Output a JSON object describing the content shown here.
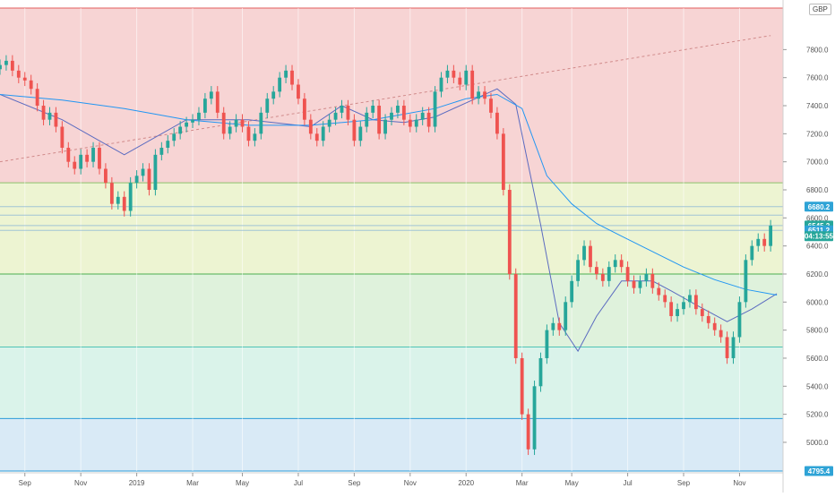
{
  "currency": "GBP",
  "colors": {
    "up": "#26a69a",
    "down": "#ef5350",
    "ma_short": "#5b6bc0",
    "ma_long": "#2196f3",
    "trendline": "#d08a8a",
    "price_badge": "#26a69a",
    "level_badge": "#2ea3d6"
  },
  "price_badges": [
    {
      "value": 6680.2,
      "label": "6680.2",
      "kind": "level"
    },
    {
      "value": 6545.2,
      "label": "6545.2",
      "kind": "last"
    },
    {
      "value": 6511.2,
      "label": "6511.2",
      "kind": "level"
    },
    {
      "value": 4795.4,
      "label": "4795.4",
      "kind": "level"
    }
  ],
  "countdown": {
    "value": 6470,
    "label": "04:13:55"
  },
  "chart_data": {
    "type": "candlestick",
    "currency_label": "GBP",
    "x_ticks": [
      "Sep",
      "Nov",
      "2019",
      "Mar",
      "May",
      "Jul",
      "Sep",
      "Nov",
      "2020",
      "Mar",
      "May",
      "Jul",
      "Sep",
      "Nov"
    ],
    "x_tick_weeks": [
      4,
      13,
      22,
      31,
      39,
      48,
      57,
      66,
      75,
      84,
      92,
      101,
      110,
      119
    ],
    "y_ticks": [
      5000,
      5200,
      5400,
      5600,
      5800,
      6000,
      6200,
      6400,
      6600,
      6800,
      7000,
      7200,
      7400,
      7600,
      7800
    ],
    "ylim": [
      4795.4,
      8096
    ],
    "x_range_weeks": [
      0,
      126
    ],
    "fib_zones": [
      {
        "from": 6850,
        "to": 8096,
        "color": "#f7d4d4",
        "line": "#e35d5d"
      },
      {
        "from": 6200,
        "to": 6850,
        "color": "#edf4d2",
        "line": "#8cc06b"
      },
      {
        "from": 5680,
        "to": 6200,
        "color": "#dff2dc",
        "line": "#4caf50"
      },
      {
        "from": 5170,
        "to": 5680,
        "color": "#daf3ea",
        "line": "#4fc3b5"
      },
      {
        "from": 4795.4,
        "to": 5170,
        "color": "#d9eaf6",
        "line": "#2a9bd8"
      }
    ],
    "horizontal_levels": [
      6680.2,
      6620,
      6545.2,
      6511.2
    ],
    "trendline": {
      "from": {
        "week": 0,
        "price": 7000
      },
      "to": {
        "week": 124,
        "price": 7900
      }
    },
    "series": [
      {
        "name": "",
        "type": "sma_short",
        "x": [
          0,
          10,
          20,
          30,
          40,
          50,
          55,
          60,
          65,
          70,
          75,
          80,
          83,
          87,
          90,
          93,
          96,
          100,
          105,
          108,
          112,
          117,
          121,
          125
        ],
        "y": [
          7480,
          7300,
          7050,
          7300,
          7300,
          7250,
          7400,
          7300,
          7280,
          7320,
          7420,
          7520,
          7410,
          6550,
          5850,
          5650,
          5900,
          6150,
          6150,
          6080,
          5980,
          5860,
          5950,
          6060
        ]
      },
      {
        "name": "",
        "type": "sma_long",
        "x": [
          0,
          10,
          20,
          30,
          40,
          50,
          60,
          70,
          75,
          80,
          84,
          88,
          92,
          96,
          100,
          105,
          110,
          115,
          120,
          125
        ],
        "y": [
          7480,
          7440,
          7380,
          7300,
          7260,
          7260,
          7300,
          7380,
          7450,
          7480,
          7380,
          6900,
          6700,
          6560,
          6470,
          6360,
          6250,
          6160,
          6090,
          6050
        ]
      }
    ],
    "candles": {
      "x": [
        0,
        1,
        2,
        3,
        4,
        5,
        6,
        7,
        8,
        9,
        10,
        11,
        12,
        13,
        14,
        15,
        16,
        17,
        18,
        19,
        20,
        21,
        22,
        23,
        24,
        25,
        26,
        27,
        28,
        29,
        30,
        31,
        32,
        33,
        34,
        35,
        36,
        37,
        38,
        39,
        40,
        41,
        42,
        43,
        44,
        45,
        46,
        47,
        48,
        49,
        50,
        51,
        52,
        53,
        54,
        55,
        56,
        57,
        58,
        59,
        60,
        61,
        62,
        63,
        64,
        65,
        66,
        67,
        68,
        69,
        70,
        71,
        72,
        73,
        74,
        75,
        76,
        77,
        78,
        79,
        80,
        81,
        82,
        83,
        84,
        85,
        86,
        87,
        88,
        89,
        90,
        91,
        92,
        93,
        94,
        95,
        96,
        97,
        98,
        99,
        100,
        101,
        102,
        103,
        104,
        105,
        106,
        107,
        108,
        109,
        110,
        111,
        112,
        113,
        114,
        115,
        116,
        117,
        118,
        119,
        120,
        121,
        122,
        123,
        124
      ],
      "close": [
        7690,
        7720,
        7650,
        7600,
        7580,
        7520,
        7400,
        7300,
        7350,
        7250,
        7100,
        7000,
        6950,
        7050,
        7000,
        7100,
        6950,
        6850,
        6700,
        6750,
        6650,
        6850,
        6900,
        6950,
        6800,
        7050,
        7100,
        7150,
        7200,
        7250,
        7280,
        7300,
        7350,
        7450,
        7500,
        7350,
        7200,
        7250,
        7300,
        7250,
        7150,
        7200,
        7350,
        7450,
        7500,
        7600,
        7650,
        7550,
        7450,
        7300,
        7200,
        7150,
        7250,
        7300,
        7350,
        7400,
        7300,
        7150,
        7250,
        7350,
        7400,
        7200,
        7300,
        7350,
        7400,
        7300,
        7250,
        7300,
        7350,
        7250,
        7500,
        7600,
        7650,
        7600,
        7550,
        7650,
        7450,
        7500,
        7450,
        7350,
        7200,
        6800,
        6200,
        5600,
        5200,
        4950,
        5400,
        5600,
        5800,
        5850,
        5800,
        6000,
        6150,
        6300,
        6400,
        6250,
        6200,
        6150,
        6250,
        6300,
        6250,
        6150,
        6100,
        6150,
        6200,
        6100,
        6050,
        6000,
        5900,
        5950,
        6000,
        6050,
        5950,
        5900,
        5850,
        5800,
        5750,
        5600,
        5750,
        6000,
        6300,
        6400,
        6450,
        6400,
        6545.2
      ],
      "range_low": 4900,
      "range_high": 7720
    }
  }
}
